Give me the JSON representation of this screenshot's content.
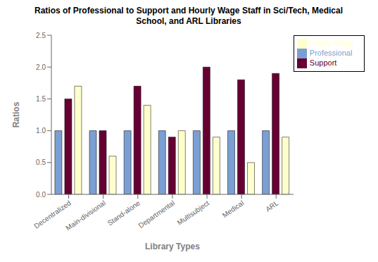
{
  "chart_data": {
    "type": "bar",
    "title": "Ratios of Professional to Support and Hourly Wage Staff in Sci/Tech, Medical\nSchool, and ARL Libraries",
    "xlabel": "Library Types",
    "ylabel": "Ratios",
    "categories": [
      "Decentralized",
      "Main-divisional",
      "Stand-alone",
      "Departmental",
      "Multisubject",
      "Medical",
      "ARL"
    ],
    "series": [
      {
        "name": "Professional",
        "color": "#7B9FD4",
        "values": [
          1.0,
          1.0,
          1.0,
          1.0,
          1.0,
          1.0,
          1.0
        ]
      },
      {
        "name": "Support",
        "color": "#660033",
        "values": [
          1.5,
          1.0,
          1.7,
          0.9,
          2.0,
          1.8,
          1.9
        ]
      },
      {
        "name": "Hourly Wage",
        "color": "#FFFFCC",
        "values": [
          1.7,
          0.6,
          1.4,
          1.0,
          0.9,
          0.5,
          0.9
        ]
      }
    ],
    "ylim": [
      0,
      2.5
    ],
    "yticks": [
      {
        "value": 0,
        "label": "0.0"
      },
      {
        "value": 0.5,
        "label": "0.5"
      },
      {
        "value": 1.0,
        "label": "1.0"
      },
      {
        "value": 1.5,
        "label": "1.5"
      },
      {
        "value": 2.0,
        "label": "2.0"
      },
      {
        "value": 2.5,
        "label": "2.5"
      }
    ],
    "grid": false,
    "legend": "right"
  }
}
